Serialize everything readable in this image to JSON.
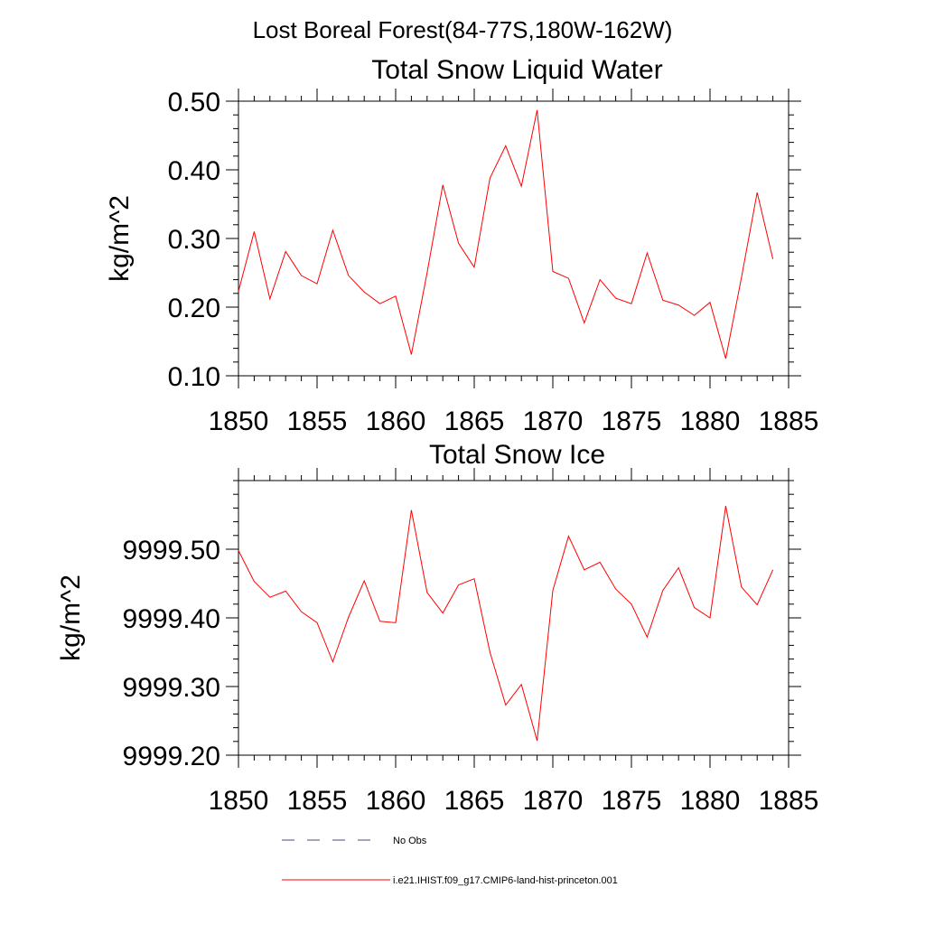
{
  "page_title": "Lost Boreal Forest(84-77S,180W-162W)",
  "legend": {
    "items": [
      {
        "label": "No Obs",
        "style": "dashed",
        "color": "#4a4a7a"
      },
      {
        "label": "i.e21.IHIST.f09_g17.CMIP6-land-hist-princeton.001",
        "style": "solid",
        "color": "#ff0000"
      }
    ]
  },
  "chart_data": [
    {
      "type": "line",
      "title": "Total Snow Liquid Water",
      "xlabel": "",
      "ylabel": "kg/m^2",
      "xlim": [
        1850,
        1885
      ],
      "ylim": [
        0.1,
        0.5
      ],
      "x_ticks": [
        "1850",
        "1855",
        "1860",
        "1865",
        "1870",
        "1875",
        "1880",
        "1885"
      ],
      "y_ticks": [
        "0.10",
        "0.20",
        "0.30",
        "0.40",
        "0.50"
      ],
      "grid": false,
      "series": [
        {
          "name": "i.e21.IHIST.f09_g17.CMIP6-land-hist-princeton.001",
          "color": "#ff0000",
          "x": [
            1850,
            1851,
            1852,
            1853,
            1854,
            1855,
            1856,
            1857,
            1858,
            1859,
            1860,
            1861,
            1862,
            1863,
            1864,
            1865,
            1866,
            1867,
            1868,
            1869,
            1870,
            1871,
            1872,
            1873,
            1874,
            1875,
            1876,
            1877,
            1878,
            1879,
            1880,
            1881,
            1882,
            1883,
            1884
          ],
          "y": [
            0.223,
            0.31,
            0.212,
            0.281,
            0.246,
            0.234,
            0.312,
            0.246,
            0.222,
            0.205,
            0.216,
            0.131,
            0.25,
            0.378,
            0.293,
            0.258,
            0.388,
            0.435,
            0.376,
            0.487,
            0.252,
            0.242,
            0.177,
            0.24,
            0.213,
            0.205,
            0.279,
            0.21,
            0.203,
            0.188,
            0.207,
            0.125,
            0.243,
            0.367,
            0.27
          ]
        }
      ]
    },
    {
      "type": "line",
      "title": "Total Snow Ice",
      "xlabel": "",
      "ylabel": "kg/m^2",
      "xlim": [
        1850,
        1885
      ],
      "ylim": [
        9999.2,
        9999.6
      ],
      "x_ticks": [
        "1850",
        "1855",
        "1860",
        "1865",
        "1870",
        "1875",
        "1880",
        "1885"
      ],
      "y_ticks": [
        "9999.20",
        "9999.30",
        "9999.40",
        "9999.50"
      ],
      "grid": false,
      "series": [
        {
          "name": "i.e21.IHIST.f09_g17.CMIP6-land-hist-princeton.001",
          "color": "#ff0000",
          "x": [
            1850,
            1851,
            1852,
            1853,
            1854,
            1855,
            1856,
            1857,
            1858,
            1859,
            1860,
            1861,
            1862,
            1863,
            1864,
            1865,
            1866,
            1867,
            1868,
            1869,
            1870,
            1871,
            1872,
            1873,
            1874,
            1875,
            1876,
            1877,
            1878,
            1879,
            1880,
            1881,
            1882,
            1883,
            1884
          ],
          "y": [
            9999.498,
            9999.453,
            9999.43,
            9999.439,
            9999.409,
            9999.393,
            9999.336,
            9999.401,
            9999.454,
            9999.395,
            9999.393,
            9999.557,
            9999.437,
            9999.407,
            9999.448,
            9999.457,
            9999.35,
            9999.273,
            9999.303,
            9999.221,
            9999.44,
            9999.519,
            9999.47,
            9999.481,
            9999.442,
            9999.42,
            9999.372,
            9999.44,
            9999.473,
            9999.415,
            9999.4,
            9999.563,
            9999.445,
            9999.419,
            9999.47
          ]
        }
      ]
    }
  ]
}
